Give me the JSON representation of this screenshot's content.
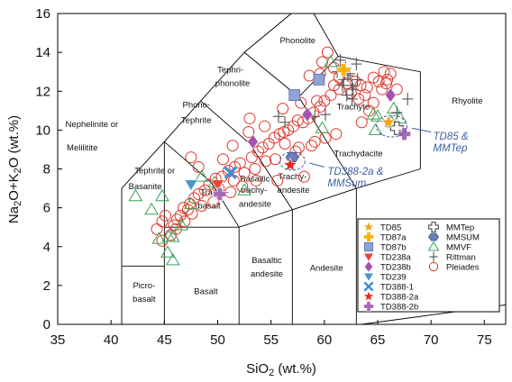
{
  "chart_data": {
    "type": "scatter",
    "xlim": [
      35,
      77
    ],
    "ylim": [
      0,
      16
    ],
    "x_ticks": [
      35,
      40,
      45,
      50,
      55,
      60,
      65,
      70,
      75
    ],
    "y_ticks": [
      0,
      2,
      4,
      6,
      8,
      10,
      12,
      14,
      16
    ],
    "xlabel": {
      "main": "SiO",
      "sub": "2",
      "tail": " (wt.%)"
    },
    "ylabel": {
      "p1": "Na",
      "s1": "2",
      "p2": "O+K",
      "s2": "2",
      "p3": "O (wt.%)"
    },
    "field_boundaries": [
      [
        [
          41,
          0
        ],
        [
          41,
          7
        ],
        [
          45,
          9.4
        ],
        [
          48.4,
          11.5
        ],
        [
          52.5,
          14
        ],
        [
          56.9,
          16
        ]
      ],
      [
        [
          45,
          0
        ],
        [
          45,
          5
        ]
      ],
      [
        [
          52,
          0
        ],
        [
          52,
          5
        ]
      ],
      [
        [
          57,
          0
        ],
        [
          57,
          5.9
        ]
      ],
      [
        [
          63,
          0
        ],
        [
          63,
          7
        ]
      ],
      [
        [
          41,
          3
        ],
        [
          45,
          3
        ]
      ],
      [
        [
          45,
          5
        ],
        [
          52,
          5
        ],
        [
          57,
          5.9
        ],
        [
          63,
          7
        ],
        [
          69,
          8
        ]
      ],
      [
        [
          45,
          5
        ],
        [
          45,
          9.4
        ]
      ],
      [
        [
          52,
          5
        ],
        [
          49.4,
          7.3
        ],
        [
          45,
          9.4
        ]
      ],
      [
        [
          57,
          5.9
        ],
        [
          53,
          9.3
        ],
        [
          48.4,
          11.5
        ]
      ],
      [
        [
          63,
          7
        ],
        [
          57.6,
          11.7
        ],
        [
          52.5,
          14
        ]
      ],
      [
        [
          69,
          8
        ],
        [
          69,
          13
        ],
        [
          61.3,
          13.8
        ],
        [
          57.6,
          11.7
        ]
      ],
      [
        [
          61.3,
          13.8
        ],
        [
          59,
          16
        ]
      ],
      [
        [
          77,
          0
        ],
        [
          77,
          1
        ],
        [
          63.5,
          0
        ]
      ]
    ],
    "field_labels": [
      {
        "text": "Phonolite",
        "x": 57.5,
        "y": 14.6
      },
      {
        "text": "Tephri-",
        "x": 51.2,
        "y": 13.1
      },
      {
        "text": "phonolite",
        "x": 51.4,
        "y": 12.4
      },
      {
        "text": "Phono-",
        "x": 48,
        "y": 11.3
      },
      {
        "text": "Tephrite",
        "x": 48,
        "y": 10.5
      },
      {
        "text": "Nephelinite or",
        "x": 38.2,
        "y": 10.3
      },
      {
        "text": "Melilitite",
        "x": 37.3,
        "y": 9.1
      },
      {
        "text": "Tephrite or",
        "x": 44.1,
        "y": 7.9
      },
      {
        "text": "Basanite",
        "x": 43.2,
        "y": 7.1
      },
      {
        "text": "Trachy-",
        "x": 49.7,
        "y": 6.8
      },
      {
        "text": "basalt",
        "x": 49.2,
        "y": 6.1
      },
      {
        "text": "Basaltic",
        "x": 53.5,
        "y": 7.5
      },
      {
        "text": "trachy-",
        "x": 53.4,
        "y": 6.9
      },
      {
        "text": "andesite",
        "x": 53.5,
        "y": 6.2
      },
      {
        "text": "Trachy-",
        "x": 57,
        "y": 7.6
      },
      {
        "text": "andesite",
        "x": 57.1,
        "y": 6.9
      },
      {
        "text": "Trachydacite",
        "x": 63.2,
        "y": 8.8
      },
      {
        "text": "Trachyte",
        "x": 62.7,
        "y": 11.2
      },
      {
        "text": "Rhyolite",
        "x": 73.4,
        "y": 11.5
      },
      {
        "text": "Picro-",
        "x": 43.1,
        "y": 2
      },
      {
        "text": "basalt",
        "x": 43.1,
        "y": 1.3
      },
      {
        "text": "Basalt",
        "x": 48.9,
        "y": 1.7
      },
      {
        "text": "Basaltic",
        "x": 54.6,
        "y": 3.3
      },
      {
        "text": "andesite",
        "x": 54.6,
        "y": 2.6
      },
      {
        "text": "Andesite",
        "x": 60.2,
        "y": 2.9
      }
    ],
    "annotations": [
      {
        "lines": [
          "TD85 &",
          "MMTep"
        ],
        "x": 70.2,
        "y": 9.5
      },
      {
        "lines": [
          "TD388-2a &",
          "MMSum"
        ],
        "x": 60.3,
        "y": 7.7
      }
    ],
    "series": [
      {
        "name": "TD85",
        "marker": "star",
        "color": "#f4a21e",
        "points": [
          [
            66,
            10.4
          ]
        ]
      },
      {
        "name": "TD87a",
        "marker": "plus-filled",
        "color": "#f6b10a",
        "points": [
          [
            61.8,
            13.1
          ]
        ]
      },
      {
        "name": "TD87b",
        "marker": "square",
        "color": "#8fa3d6",
        "points": [
          [
            59.5,
            12.6
          ],
          [
            57.2,
            11.8
          ]
        ]
      },
      {
        "name": "TD238a",
        "marker": "triangle-down",
        "color": "#e8463a",
        "points": [
          [
            50,
            7.2
          ]
        ]
      },
      {
        "name": "TD238b",
        "marker": "diamond",
        "color": "#a253b0",
        "points": [
          [
            66.2,
            11.8
          ],
          [
            58.4,
            10.8
          ],
          [
            53.3,
            9.4
          ]
        ]
      },
      {
        "name": "TD239",
        "marker": "triangle-down",
        "color": "#4a97cf",
        "points": [
          [
            47.5,
            7.2
          ]
        ]
      },
      {
        "name": "TD388-1",
        "marker": "x-thick",
        "color": "#3f8fd4",
        "points": [
          [
            51.2,
            7.8
          ]
        ]
      },
      {
        "name": "TD388-2a",
        "marker": "star",
        "color": "#e52a21",
        "points": [
          [
            56.8,
            8.2
          ]
        ]
      },
      {
        "name": "TD388-2b",
        "marker": "plus-filled",
        "color": "#a76ab8",
        "points": [
          [
            67.5,
            9.8
          ],
          [
            50.2,
            6.7
          ]
        ]
      },
      {
        "name": "MMTep",
        "marker": "plus-open",
        "color": "#555555",
        "points": [
          [
            66.8,
            10.1
          ]
        ]
      },
      {
        "name": "MMSUM",
        "marker": "hexagon",
        "color": "#6b7fba",
        "points": [
          [
            57,
            8.6
          ]
        ]
      },
      {
        "name": "MMVF",
        "marker": "triangle-open",
        "color": "#3ca257",
        "points": [
          [
            42.3,
            6.6
          ],
          [
            43.8,
            5.9
          ],
          [
            44.8,
            6.6
          ],
          [
            45.8,
            4.5
          ],
          [
            45.4,
            4.5
          ],
          [
            45.8,
            3.3
          ],
          [
            45.3,
            3.7
          ],
          [
            46.6,
            5.1
          ],
          [
            44.5,
            4.4
          ],
          [
            47.5,
            6.2
          ],
          [
            48.5,
            7.6
          ],
          [
            49.7,
            7.3
          ],
          [
            52.5,
            6.9
          ],
          [
            65,
            10.7
          ],
          [
            66.5,
            11.1
          ],
          [
            67.1,
            10.6
          ],
          [
            64.8,
            10
          ],
          [
            66.3,
            10.4
          ],
          [
            64.6,
            10.8
          ],
          [
            59.8,
            10.1
          ],
          [
            60.6,
            13.5
          ]
        ]
      },
      {
        "name": "Rittman",
        "marker": "plus-thin",
        "color": "#555555",
        "points": [
          [
            61.5,
            13.6
          ],
          [
            62,
            13.2
          ],
          [
            62.4,
            12.9
          ],
          [
            61.8,
            12.6
          ],
          [
            62.6,
            12.3
          ],
          [
            62.2,
            12.8
          ],
          [
            61.2,
            13
          ],
          [
            62.7,
            12.1
          ],
          [
            62.1,
            11.8
          ],
          [
            62.6,
            11.6
          ],
          [
            63,
            13.4
          ],
          [
            61.7,
            12.3
          ],
          [
            63.1,
            12.6
          ],
          [
            67.8,
            11.6
          ],
          [
            66.8,
            10.9
          ],
          [
            56.3,
            10.4
          ],
          [
            55.7,
            10.7
          ],
          [
            59.1,
            10.7
          ],
          [
            60.1,
            10.8
          ]
        ]
      },
      {
        "name": "Pleiades",
        "marker": "circle-open",
        "color": "#e0362b",
        "points": [
          [
            44.3,
            4.9
          ],
          [
            44.8,
            5.3
          ],
          [
            45.1,
            5.6
          ],
          [
            45.9,
            5.1
          ],
          [
            46.5,
            5.6
          ],
          [
            46.2,
            5.4
          ],
          [
            47.2,
            5.9
          ],
          [
            46.8,
            6
          ],
          [
            47.4,
            6.2
          ],
          [
            47.8,
            6.5
          ],
          [
            48.2,
            6.7
          ],
          [
            48.8,
            6.9
          ],
          [
            49.2,
            7.2
          ],
          [
            49.8,
            7.5
          ],
          [
            50.4,
            7.6
          ],
          [
            51,
            7.9
          ],
          [
            51.6,
            8.1
          ],
          [
            52.1,
            8.3
          ],
          [
            53.2,
            8.6
          ],
          [
            53.8,
            8.9
          ],
          [
            54.2,
            9.1
          ],
          [
            54.8,
            9.3
          ],
          [
            55.3,
            9.6
          ],
          [
            55.8,
            9.8
          ],
          [
            56.2,
            9.9
          ],
          [
            56.6,
            10
          ],
          [
            57.1,
            10.2
          ],
          [
            57.5,
            10.5
          ],
          [
            58,
            10.4
          ],
          [
            58.5,
            10.6
          ],
          [
            59,
            10.9
          ],
          [
            59.6,
            11.2
          ],
          [
            60,
            11.5
          ],
          [
            60.6,
            11.8
          ],
          [
            60.9,
            12.3
          ],
          [
            61.4,
            12.1
          ],
          [
            62.1,
            12.4
          ],
          [
            62.9,
            12.5
          ],
          [
            63.4,
            12.3
          ],
          [
            64,
            12.2
          ],
          [
            64.6,
            12.7
          ],
          [
            65.1,
            12.5
          ],
          [
            65.8,
            12.4
          ],
          [
            66.2,
            12.9
          ],
          [
            65.9,
            12.6
          ],
          [
            66.8,
            12.1
          ],
          [
            60.3,
            14
          ],
          [
            60.9,
            13.2
          ],
          [
            59.8,
            13.5
          ],
          [
            59.6,
            12.9
          ],
          [
            58.6,
            12.8
          ],
          [
            61.4,
            12.7
          ],
          [
            47.5,
            8.6
          ],
          [
            48.2,
            8.1
          ],
          [
            50.5,
            8.5
          ],
          [
            51.4,
            9.2
          ],
          [
            52.9,
            9.9
          ],
          [
            55.4,
            8.5
          ],
          [
            56.3,
            9.3
          ],
          [
            57.6,
            9.1
          ],
          [
            59.1,
            9.4
          ],
          [
            60.1,
            9.6
          ],
          [
            61.1,
            9.8
          ],
          [
            58.1,
            7.6
          ],
          [
            55.6,
            7.4
          ],
          [
            53.6,
            7.4
          ],
          [
            52.3,
            7.1
          ],
          [
            51.2,
            6.8
          ],
          [
            49.6,
            6.3
          ],
          [
            48.5,
            6.1
          ],
          [
            47.6,
            5.7
          ],
          [
            46.9,
            5.3
          ],
          [
            46.1,
            4.9
          ],
          [
            45.6,
            4.6
          ],
          [
            44.8,
            4.3
          ],
          [
            50.1,
            7
          ],
          [
            51.5,
            7.4
          ],
          [
            52.5,
            7.8
          ],
          [
            53.5,
            8
          ],
          [
            54.5,
            8.4
          ],
          [
            57.3,
            8.9
          ],
          [
            58.8,
            9.2
          ],
          [
            63.5,
            10.4
          ],
          [
            64.2,
            11
          ],
          [
            64.6,
            11.4
          ],
          [
            63.2,
            11.6
          ],
          [
            53,
            10.6
          ],
          [
            54.4,
            10.2
          ],
          [
            56.1,
            11.1
          ],
          [
            57.8,
            11.4
          ],
          [
            59.3,
            11.5
          ],
          [
            62.5,
            11.9
          ],
          [
            63.8,
            11.8
          ],
          [
            65.4,
            12.1
          ],
          [
            65.6,
            13
          ]
        ]
      }
    ]
  }
}
